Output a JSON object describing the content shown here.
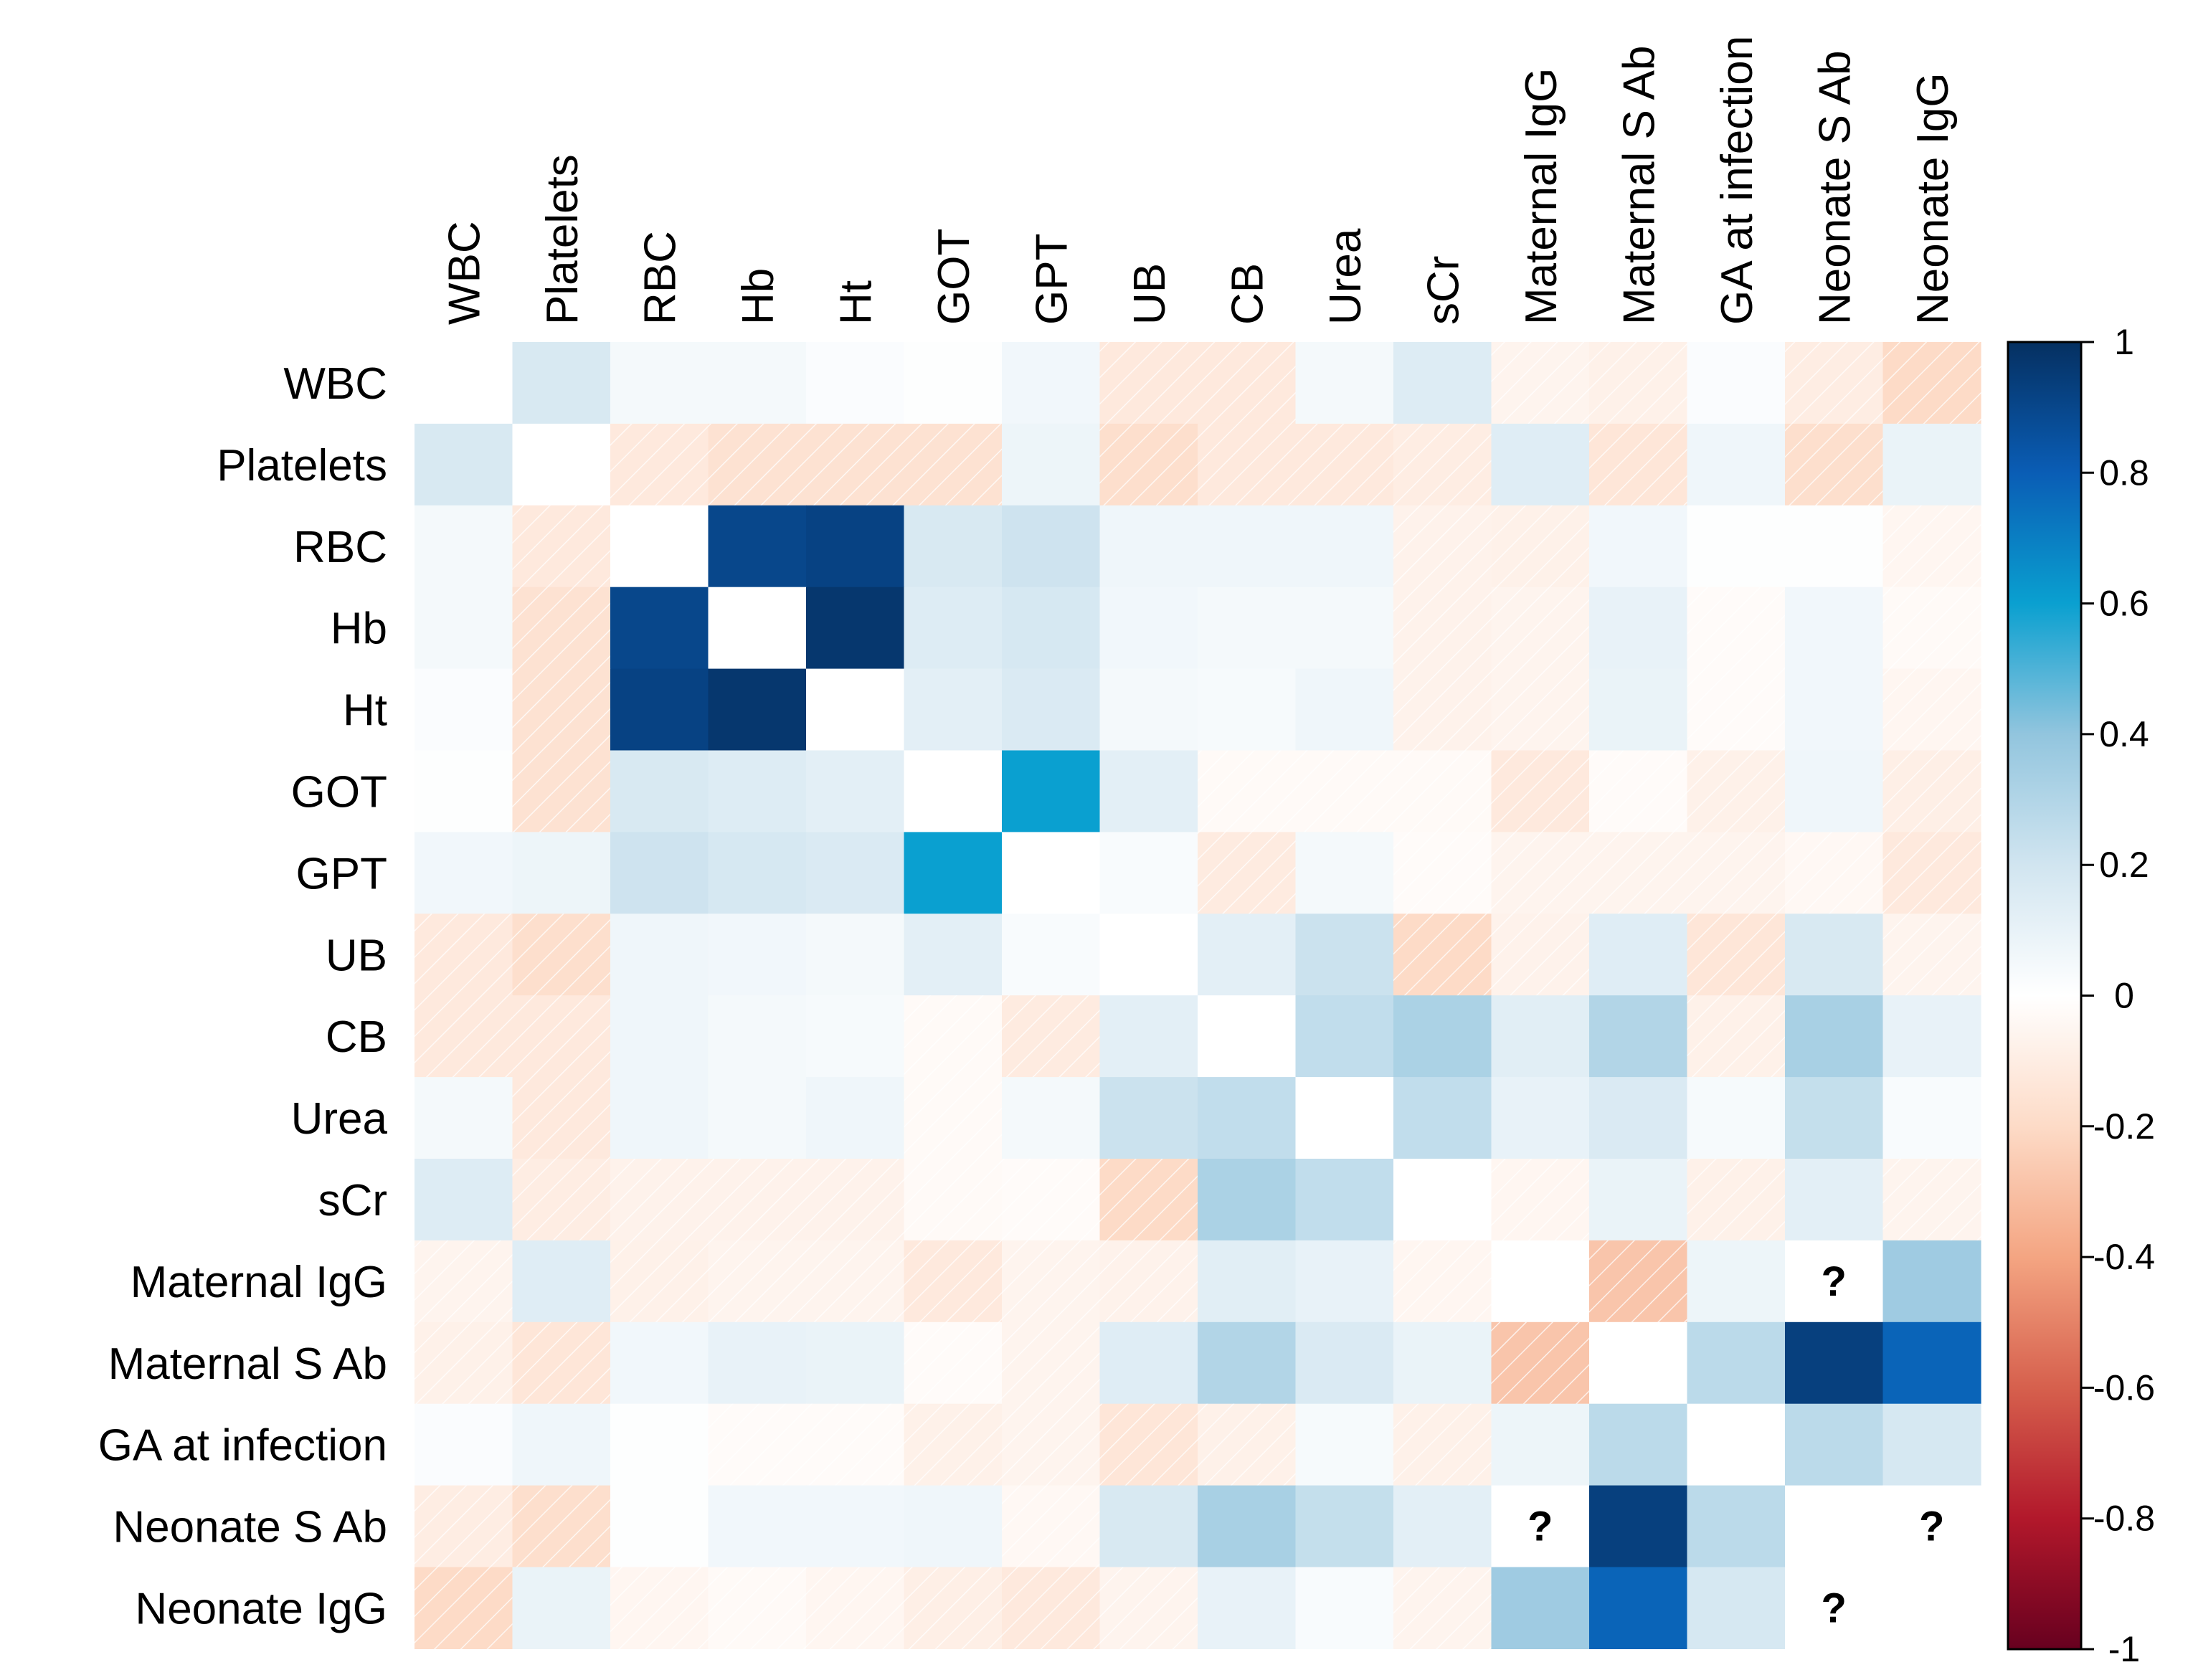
{
  "chart_data": {
    "type": "heatmap",
    "title": "",
    "variables": [
      "WBC",
      "Platelets",
      "RBC",
      "Hb",
      "Ht",
      "GOT",
      "GPT",
      "UB",
      "CB",
      "Urea",
      "sCr",
      "Maternal IgG",
      "Maternal S Ab",
      "GA at infection",
      "Neonate S Ab",
      "Neonate IgG"
    ],
    "matrix": [
      [
        null,
        0.17,
        0.05,
        0.05,
        0.02,
        0.01,
        0.06,
        -0.12,
        -0.12,
        0.05,
        0.15,
        -0.06,
        -0.08,
        0.02,
        -0.1,
        -0.2
      ],
      [
        0.17,
        null,
        -0.12,
        -0.16,
        -0.16,
        -0.16,
        0.08,
        -0.18,
        -0.12,
        -0.12,
        -0.1,
        0.14,
        -0.14,
        0.07,
        -0.18,
        0.09
      ],
      [
        0.05,
        -0.12,
        null,
        0.9,
        0.92,
        0.17,
        0.21,
        0.07,
        0.07,
        0.07,
        -0.07,
        -0.08,
        0.06,
        0.01,
        0.01,
        -0.05
      ],
      [
        0.05,
        -0.16,
        0.9,
        null,
        0.97,
        0.15,
        0.18,
        0.06,
        0.05,
        0.05,
        -0.07,
        -0.06,
        0.1,
        -0.02,
        0.06,
        -0.03
      ],
      [
        0.02,
        -0.16,
        0.92,
        0.97,
        null,
        0.12,
        0.16,
        0.05,
        0.04,
        0.07,
        -0.07,
        -0.06,
        0.09,
        -0.02,
        0.06,
        -0.05
      ],
      [
        0.01,
        -0.16,
        0.17,
        0.15,
        0.12,
        null,
        0.6,
        0.12,
        -0.03,
        -0.03,
        -0.03,
        -0.12,
        -0.02,
        -0.08,
        0.07,
        -0.09
      ],
      [
        0.06,
        0.08,
        0.21,
        0.18,
        0.16,
        0.6,
        null,
        0.03,
        -0.11,
        0.05,
        -0.02,
        -0.06,
        -0.06,
        -0.06,
        -0.04,
        -0.12
      ],
      [
        -0.12,
        -0.18,
        0.07,
        0.06,
        0.05,
        0.12,
        0.03,
        null,
        0.12,
        0.22,
        -0.2,
        -0.07,
        0.14,
        -0.14,
        0.17,
        -0.06
      ],
      [
        -0.12,
        -0.12,
        0.07,
        0.05,
        0.04,
        -0.03,
        -0.11,
        0.12,
        null,
        0.25,
        0.32,
        0.13,
        0.3,
        -0.08,
        0.33,
        0.1
      ],
      [
        0.05,
        -0.12,
        0.07,
        0.05,
        0.07,
        -0.03,
        0.05,
        0.22,
        0.25,
        null,
        0.25,
        0.1,
        0.16,
        0.04,
        0.24,
        0.03
      ],
      [
        0.15,
        -0.1,
        -0.07,
        -0.07,
        -0.07,
        -0.03,
        -0.02,
        -0.2,
        0.32,
        0.25,
        null,
        -0.05,
        0.09,
        -0.08,
        0.12,
        -0.06
      ],
      [
        -0.06,
        0.14,
        -0.08,
        -0.06,
        -0.06,
        -0.12,
        -0.06,
        -0.07,
        0.13,
        0.1,
        -0.05,
        null,
        -0.28,
        0.08,
        null,
        0.36
      ],
      [
        -0.08,
        -0.14,
        0.06,
        0.1,
        0.09,
        -0.02,
        -0.06,
        0.14,
        0.3,
        0.16,
        0.09,
        -0.28,
        null,
        0.27,
        0.93,
        0.78
      ],
      [
        0.02,
        0.07,
        0.01,
        -0.02,
        -0.02,
        -0.08,
        -0.06,
        -0.14,
        -0.08,
        0.04,
        -0.08,
        0.08,
        0.27,
        null,
        0.27,
        0.18
      ],
      [
        -0.1,
        -0.18,
        0.01,
        0.06,
        0.06,
        0.07,
        -0.04,
        0.17,
        0.33,
        0.24,
        0.12,
        null,
        0.93,
        0.27,
        null,
        null
      ],
      [
        -0.2,
        0.09,
        -0.05,
        -0.03,
        -0.05,
        -0.09,
        -0.12,
        -0.06,
        0.1,
        0.03,
        -0.06,
        0.36,
        0.78,
        0.18,
        null,
        null
      ]
    ],
    "missing": [
      [
        11,
        14
      ],
      [
        14,
        11
      ],
      [
        14,
        15
      ],
      [
        15,
        14
      ]
    ],
    "missing_symbol": "?",
    "negative_pattern": "diagonal hatch",
    "colorbar": {
      "range": [
        -1,
        1
      ],
      "ticks": [
        "1",
        "0.8",
        "0.6",
        "0.4",
        "0.2",
        "0",
        "-0.2",
        "-0.4",
        "-0.6",
        "-0.8",
        "-1"
      ],
      "stops": [
        {
          "v": -1.0,
          "c": "#67001f"
        },
        {
          "v": -0.8,
          "c": "#b2182b"
        },
        {
          "v": -0.6,
          "c": "#d6604d"
        },
        {
          "v": -0.4,
          "c": "#f4a582"
        },
        {
          "v": -0.2,
          "c": "#fddbc7"
        },
        {
          "v": 0.0,
          "c": "#ffffff"
        },
        {
          "v": 0.2,
          "c": "#d1e5f0"
        },
        {
          "v": 0.4,
          "c": "#92c5de"
        },
        {
          "v": 0.6,
          "c": "#0aa0d0"
        },
        {
          "v": 0.8,
          "c": "#0a5db5"
        },
        {
          "v": 1.0,
          "c": "#053061"
        }
      ]
    }
  }
}
